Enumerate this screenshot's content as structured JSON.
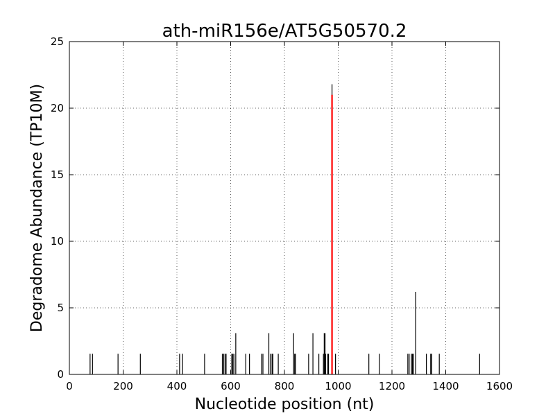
{
  "chart_data": {
    "type": "bar",
    "title": "ath-miR156e/AT5G50570.2",
    "xlabel": "Nucleotide position (nt)",
    "ylabel": "Degradome Abundance (TP10M)",
    "xlim": [
      0,
      1600
    ],
    "ylim": [
      0,
      25
    ],
    "xticks": [
      0,
      200,
      400,
      600,
      800,
      1000,
      1200,
      1400,
      1600
    ],
    "yticks": [
      0,
      5,
      10,
      15,
      20,
      25
    ],
    "grid": true,
    "colors": {
      "background": "#000000",
      "highlight": "#ff0000"
    },
    "series": [
      {
        "role": "background",
        "x": [
          77,
          86,
          181,
          264,
          410,
          421,
          503,
          569,
          574,
          579,
          583,
          604,
          608,
          612,
          619,
          656,
          670,
          715,
          720,
          742,
          748,
          754,
          757,
          777,
          834,
          838,
          841,
          890,
          906,
          928,
          945,
          948,
          951,
          953,
          960,
          964,
          977,
          990,
          1114,
          1153,
          1259,
          1264,
          1272,
          1276,
          1280,
          1288,
          1328,
          1344,
          1348,
          1376,
          1526
        ],
        "values": [
          1.55,
          1.55,
          1.55,
          1.55,
          1.55,
          1.55,
          1.55,
          1.55,
          1.55,
          1.55,
          1.55,
          1.55,
          1.55,
          1.55,
          3.1,
          1.55,
          1.55,
          1.55,
          1.55,
          3.1,
          1.55,
          1.55,
          1.55,
          1.55,
          3.1,
          1.55,
          1.55,
          1.55,
          3.1,
          1.55,
          1.55,
          3.1,
          3.1,
          1.55,
          1.55,
          1.55,
          21.8,
          1.55,
          1.55,
          1.55,
          1.55,
          1.55,
          1.55,
          1.55,
          1.55,
          6.2,
          1.55,
          1.55,
          1.55,
          1.55,
          1.55
        ]
      },
      {
        "role": "highlight",
        "x": [
          977
        ],
        "values": [
          21.0
        ]
      }
    ]
  }
}
